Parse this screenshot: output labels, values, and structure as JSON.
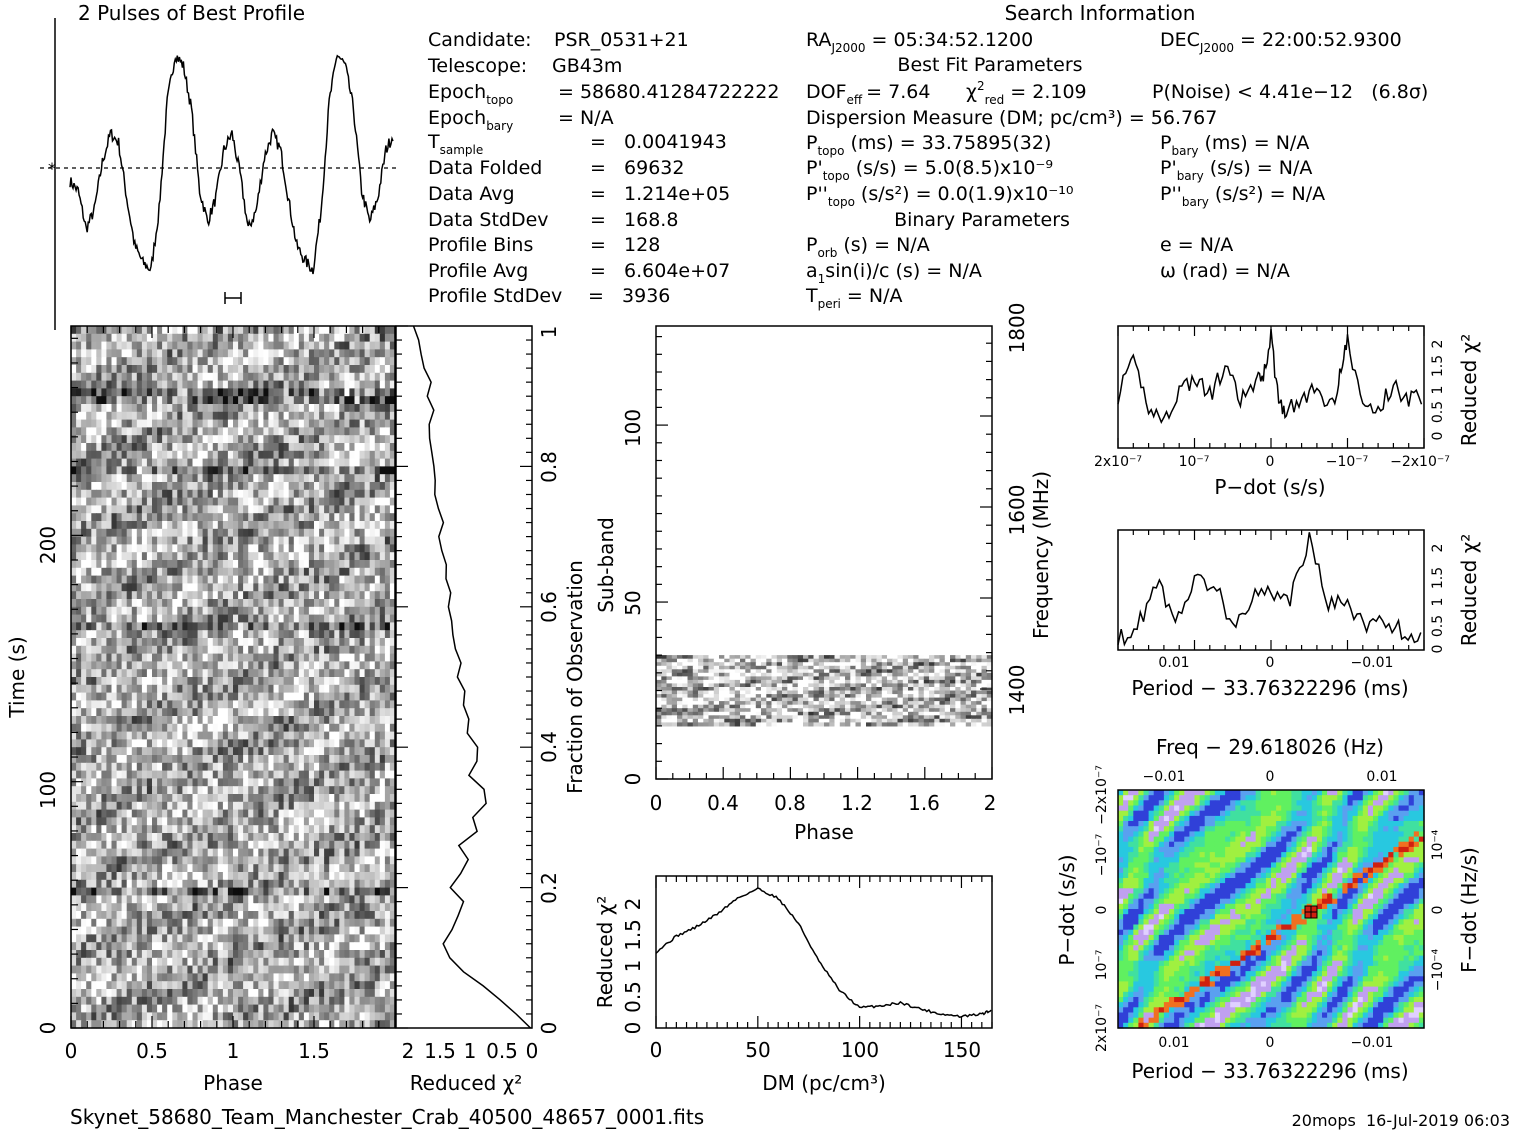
{
  "header": {
    "left_title": "2 Pulses of Best Profile",
    "search_title": "Search Information",
    "best_fit_title": "Best Fit Parameters",
    "binary_title": "Binary Parameters"
  },
  "info_lines": [
    {
      "label": "Candidate:",
      "value": "PSR_0531+21"
    },
    {
      "label": "Telescope:",
      "value": "GB43m"
    },
    {
      "label": "Epoch",
      "sub": "topo",
      "value": "= 58680.41284722222"
    },
    {
      "label": "Epoch",
      "sub": "bary",
      "value": "= N/A"
    },
    {
      "label": "T",
      "sub": "sample",
      "value": "=   0.0041943"
    },
    {
      "label": "Data Folded",
      "value": "=   69632"
    },
    {
      "label": "Data Avg",
      "value": "=   1.214e+05"
    },
    {
      "label": "Data StdDev",
      "value": "=   168.8"
    },
    {
      "label": "Profile Bins",
      "value": "=   128"
    },
    {
      "label": "Profile Avg",
      "value": "=   6.604e+07"
    },
    {
      "label": "Profile StdDev",
      "value": "=   3936"
    }
  ],
  "search_info": {
    "ra": "RA",
    "ra_sub": "J2000",
    "ra_value": "= 05:34:52.1200",
    "dec": "DEC",
    "dec_sub": "J2000",
    "dec_value": "= 22:00:52.9300",
    "dof": "DOF",
    "dof_sub": "eff",
    "dof_value": "= 7.64",
    "chi": "χ",
    "chi_sub": "red",
    "chi_value": "= 2.109",
    "pnoise": "P(Noise) < 4.41e−12   (6.8σ)",
    "dm_line": "Dispersion Measure (DM; pc/cm³) = 56.767",
    "ptopo": "P",
    "ptopo_sub": "topo",
    "ptopo_value": "(ms) =   33.75895(32)",
    "pbary": "P",
    "pbary_sub": "bary",
    "pbary_value": "(ms) = N/A",
    "pdtopo": "P'",
    "pdtopo_sub": "topo",
    "pdtopo_value": "(s/s) =   5.0(8.5)x10⁻⁹",
    "pdbary": "P'",
    "pdbary_sub": "bary",
    "pdbary_value": "(s/s) = N/A",
    "pddtopo": "P''",
    "pddtopo_sub": "topo",
    "pddtopo_value": "(s/s²) = 0.0(1.9)x10⁻¹⁰",
    "pddbary": "P''",
    "pddbary_sub": "bary",
    "pddbary_value": "(s/s²) = N/A",
    "porb": "P",
    "porb_sub": "orb",
    "porb_value": "(s) = N/A",
    "e_value": "e = N/A",
    "a1": "a",
    "a1_sub": "1",
    "a1_value": "sin(i)/c (s) = N/A",
    "omega_value": "ω (rad) = N/A",
    "tperi": "T",
    "tperi_sub": "peri",
    "tperi_value": "= N/A"
  },
  "footer": {
    "filename": "Skynet_58680_Team_Manchester_Crab_40500_48657_0001.fits",
    "stamp": "20mops  16-Jul-2019 06:03"
  },
  "chart_data": [
    {
      "type": "line",
      "name": "profile",
      "title": "2 Pulses of Best Profile",
      "x": [
        0.0,
        0.05,
        0.1,
        0.15,
        0.2,
        0.25,
        0.3,
        0.35,
        0.4,
        0.45,
        0.5,
        0.55,
        0.6,
        0.65,
        0.7,
        0.75,
        0.8,
        0.85,
        0.9,
        0.95,
        1.0,
        1.05,
        1.1,
        1.15,
        1.2,
        1.25,
        1.3,
        1.35,
        1.4,
        1.45,
        1.5,
        1.55,
        1.6,
        1.65,
        1.7,
        1.75,
        1.8,
        1.85,
        1.9,
        1.95,
        2.0
      ],
      "y": [
        0.42,
        0.38,
        0.22,
        0.3,
        0.5,
        0.62,
        0.58,
        0.35,
        0.15,
        0.08,
        0.05,
        0.3,
        0.75,
        0.95,
        0.9,
        0.72,
        0.38,
        0.25,
        0.35,
        0.55,
        0.62,
        0.45,
        0.22,
        0.3,
        0.52,
        0.62,
        0.55,
        0.34,
        0.15,
        0.09,
        0.05,
        0.3,
        0.75,
        0.95,
        0.9,
        0.72,
        0.38,
        0.25,
        0.35,
        0.55,
        0.62
      ]
    },
    {
      "type": "heatmap",
      "name": "time-phase",
      "xlabel": "Phase",
      "ylabel": "Time (s)",
      "xlim": [
        0,
        2
      ],
      "ylim": [
        0,
        280
      ],
      "x_ticks": [
        "0",
        "0.5",
        "1",
        "1.5"
      ],
      "y_ticks": [
        "0",
        "100",
        "200"
      ]
    },
    {
      "type": "line",
      "name": "time-chi2",
      "xlabel": "Reduced χ²",
      "y2label": "Fraction of Observation",
      "x_ticks": [
        "2",
        "1.5",
        "1",
        "0.5",
        "0"
      ],
      "y2_ticks": [
        "0",
        "0.2",
        "0.4",
        "0.6",
        "0.8",
        "1"
      ],
      "y": [
        0.0,
        0.02,
        0.04,
        0.06,
        0.08,
        0.1,
        0.12,
        0.14,
        0.16,
        0.18,
        0.2,
        0.22,
        0.24,
        0.26,
        0.28,
        0.3,
        0.32,
        0.34,
        0.36,
        0.38,
        0.4,
        0.42,
        0.44,
        0.46,
        0.48,
        0.5,
        0.52,
        0.54,
        0.56,
        0.58,
        0.6,
        0.62,
        0.64,
        0.66,
        0.68,
        0.7,
        0.72,
        0.74,
        0.76,
        0.78,
        0.8,
        0.82,
        0.84,
        0.86,
        0.88,
        0.9,
        0.92,
        0.94,
        0.96,
        0.98,
        1.0
      ],
      "x": [
        0.05,
        0.25,
        0.5,
        0.8,
        1.1,
        1.35,
        1.45,
        1.3,
        1.2,
        1.1,
        1.3,
        1.15,
        1.05,
        1.2,
        0.9,
        0.95,
        0.75,
        0.8,
        1.0,
        0.9,
        0.9,
        1.05,
        1.0,
        1.1,
        1.1,
        1.2,
        1.15,
        1.25,
        1.3,
        1.3,
        1.35,
        1.3,
        1.4,
        1.4,
        1.45,
        1.5,
        1.45,
        1.5,
        1.55,
        1.55,
        1.6,
        1.6,
        1.65,
        1.65,
        1.6,
        1.7,
        1.65,
        1.75,
        1.8,
        1.85,
        1.9
      ]
    },
    {
      "type": "heatmap",
      "name": "subband-phase",
      "xlabel": "Phase",
      "ylabel": "Sub-band",
      "y2label": "Frequency (MHz)",
      "xlim": [
        0,
        2
      ],
      "ylim": [
        0,
        128
      ],
      "x_ticks": [
        "0",
        "0.4",
        "0.8",
        "1.2",
        "1.6",
        "2"
      ],
      "y_ticks": [
        "0",
        "50",
        "100"
      ],
      "y2_ticks": [
        "1400",
        "1600",
        "1800"
      ],
      "band_range": [
        15,
        35
      ]
    },
    {
      "type": "line",
      "name": "dm-chi2",
      "xlabel": "DM (pc/cm³)",
      "ylabel": "Reduced χ²",
      "xlim": [
        0,
        165
      ],
      "ylim": [
        0,
        2.4
      ],
      "x_ticks": [
        "0",
        "50",
        "100",
        "150"
      ],
      "y_ticks": [
        "0",
        "0.5",
        "1",
        "1.5",
        "2"
      ],
      "x": [
        0,
        10,
        20,
        30,
        40,
        50,
        60,
        70,
        80,
        90,
        100,
        110,
        120,
        130,
        140,
        150,
        160,
        165
      ],
      "y": [
        1.2,
        1.45,
        1.6,
        1.8,
        2.05,
        2.2,
        2.05,
        1.65,
        1.05,
        0.6,
        0.32,
        0.35,
        0.4,
        0.3,
        0.22,
        0.18,
        0.22,
        0.28
      ]
    },
    {
      "type": "line",
      "name": "pdot-chi2",
      "xlabel": "P−dot (s/s)",
      "ylabel": "Reduced χ²",
      "x_ticks": [
        "2x10⁻⁷",
        "10⁻⁷",
        "0",
        "−10⁻⁷",
        "−2x10⁻⁷"
      ],
      "y_ticks": [
        "0",
        "0.5",
        "1",
        "1.5",
        "2"
      ],
      "x": [
        2.0,
        1.8,
        1.6,
        1.4,
        1.2,
        1.0,
        0.8,
        0.6,
        0.4,
        0.2,
        0.1,
        0.0,
        -0.1,
        -0.2,
        -0.4,
        -0.6,
        -0.8,
        -0.9,
        -1.0,
        -1.2,
        -1.4,
        -1.6,
        -1.8,
        -2.0
      ],
      "y": [
        1.0,
        1.6,
        0.8,
        0.5,
        1.1,
        1.3,
        1.0,
        1.5,
        0.9,
        1.2,
        1.4,
        2.1,
        0.9,
        0.7,
        0.9,
        1.1,
        0.8,
        1.4,
        2.0,
        0.8,
        0.7,
        1.2,
        0.9,
        1.0
      ]
    },
    {
      "type": "line",
      "name": "period-chi2",
      "xlabel": "Period − 33.76322296 (ms)",
      "ylabel": "Reduced χ²",
      "x_ticks": [
        "0.01",
        "0",
        "−0.01"
      ],
      "y_ticks": [
        "0",
        "0.5",
        "1",
        "1.5",
        "2"
      ],
      "x": [
        0.016,
        0.014,
        0.012,
        0.01,
        0.008,
        0.006,
        0.004,
        0.002,
        0.0,
        -0.002,
        -0.004,
        -0.006,
        -0.008,
        -0.01,
        -0.012,
        -0.014,
        -0.016
      ],
      "y": [
        0.2,
        0.4,
        1.35,
        0.6,
        1.3,
        1.3,
        0.5,
        1.0,
        1.1,
        1.0,
        2.1,
        0.9,
        0.9,
        0.4,
        0.6,
        0.3,
        0.2
      ]
    },
    {
      "type": "heatmap",
      "name": "period-pdot",
      "title": "Freq − 29.618026 (Hz)",
      "xlabel": "Period − 33.76322296 (ms)",
      "ylabel": "P−dot (s/s)",
      "y2label": "F−dot (Hz/s)",
      "x_ticks": [
        "0.01",
        "0",
        "−0.01"
      ],
      "x2_ticks": [
        "−0.01",
        "0",
        "0.01"
      ],
      "y_ticks": [
        "2x10⁻⁷",
        "10⁻⁷",
        "0",
        "−10⁻⁷",
        "−2x10⁻⁷"
      ],
      "y2_ticks": [
        "−10⁻⁴",
        "0",
        "10⁻⁴"
      ],
      "colors": [
        "#3040d8",
        "#5aa0f0",
        "#28c8e0",
        "#40e0a0",
        "#60f060",
        "#a0f040",
        "#c0a0f0",
        "#e0d0ff",
        "#f07020",
        "#d02010"
      ]
    }
  ]
}
